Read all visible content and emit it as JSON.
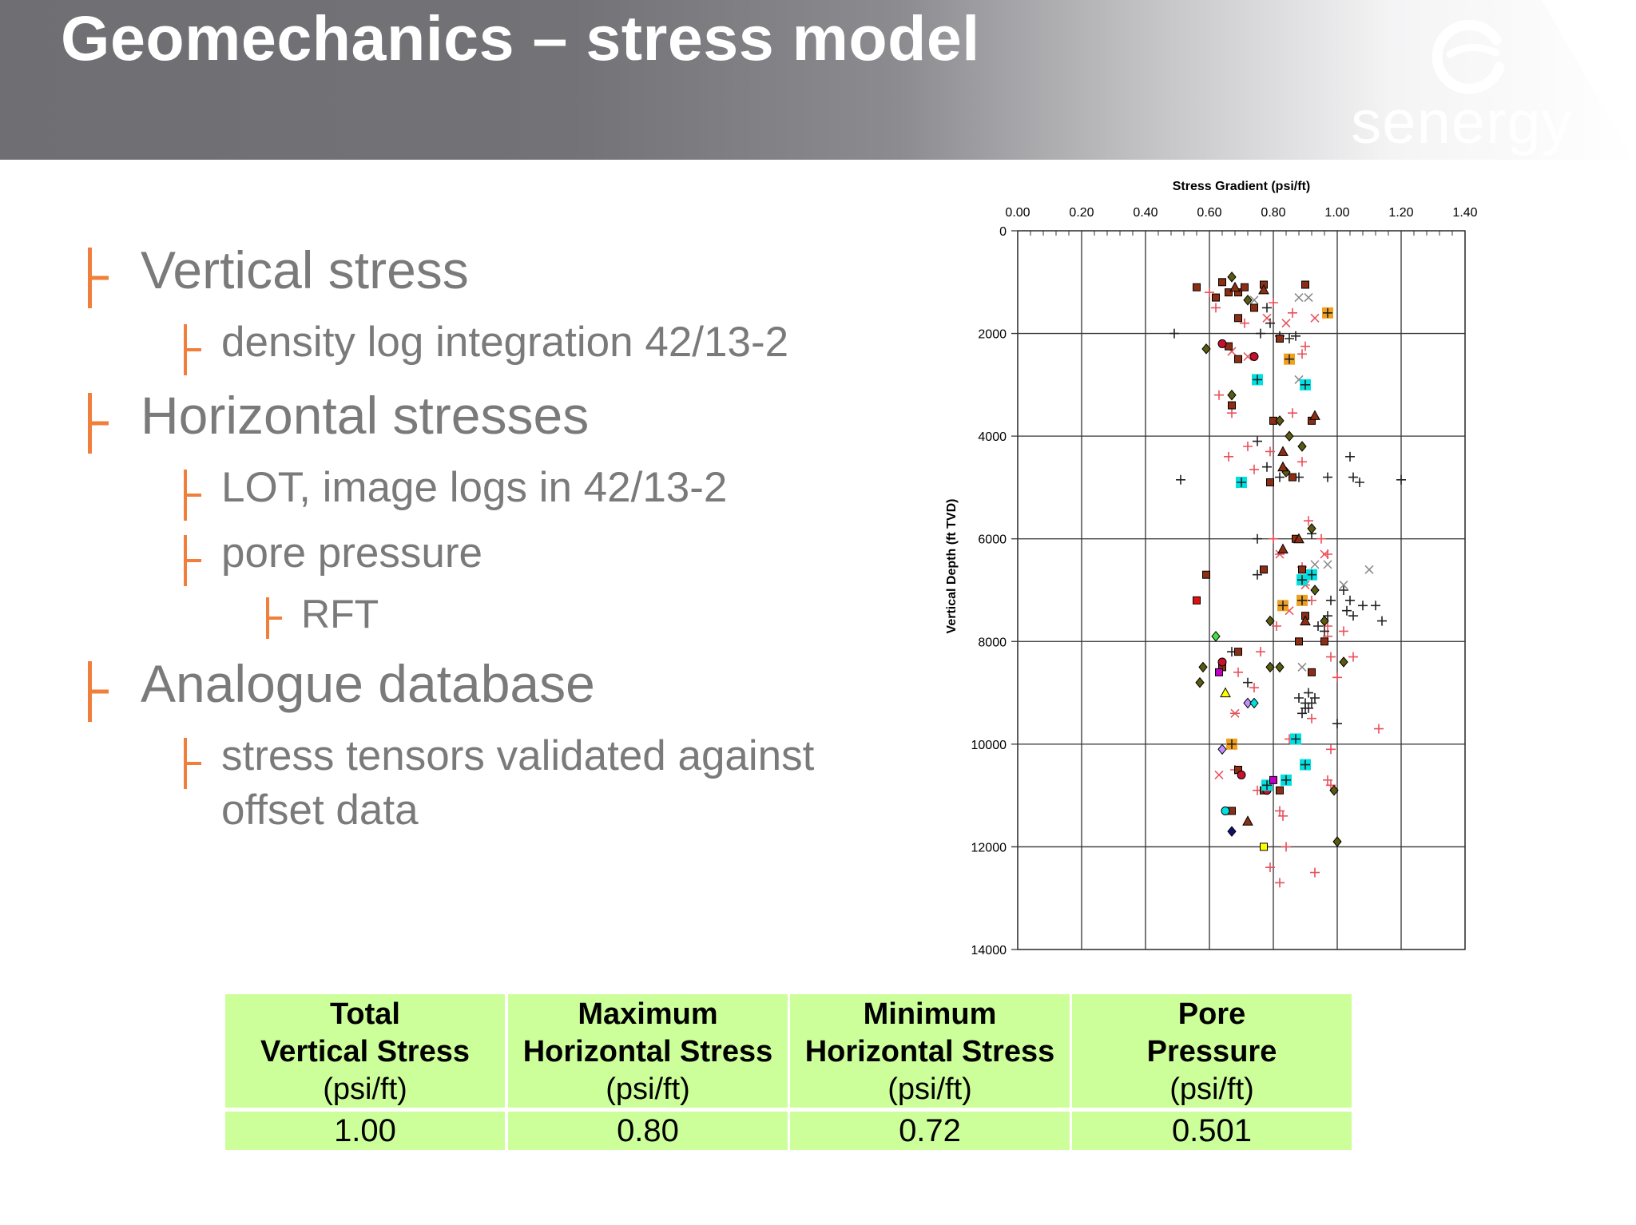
{
  "slide": {
    "title": "Geomechanics – stress model",
    "logo": {
      "word": "senergy",
      "icon": "senergy-swoosh-icon"
    },
    "colors": {
      "header_gray": "#737377",
      "bullet_marker": "#f07f3c",
      "bullet_text": "#7a7a7a",
      "table_fill": "#ccff99"
    }
  },
  "bullets": [
    {
      "level": 1,
      "text": "Vertical stress"
    },
    {
      "level": 2,
      "text": "density log integration 42/13-2"
    },
    {
      "level": 1,
      "text": "Horizontal stresses"
    },
    {
      "level": 2,
      "text": "LOT, image logs in 42/13-2"
    },
    {
      "level": 2,
      "text": "pore pressure"
    },
    {
      "level": 3,
      "text": "RFT"
    },
    {
      "level": 1,
      "text": "Analogue database"
    },
    {
      "level": 2,
      "text": "stress tensors validated against"
    },
    {
      "level": 2,
      "text": "offset data"
    }
  ],
  "chart_data": {
    "type": "scatter",
    "title": "Stress Gradient (psi/ft)",
    "xlabel": "Stress Gradient (psi/ft)",
    "ylabel": "Vertical Depth (ft TVD)",
    "xlim": [
      0,
      1.4
    ],
    "ylim": [
      0,
      14000
    ],
    "y_inverted": true,
    "x_axis_position": "top",
    "grid": true,
    "x_ticks": [
      "0.00",
      "0.20",
      "0.40",
      "0.60",
      "0.80",
      "1.00",
      "1.20",
      "1.40"
    ],
    "y_ticks": [
      "0",
      "2000",
      "4000",
      "6000",
      "8000",
      "10000",
      "12000",
      "14000"
    ],
    "series": [
      {
        "marker": "plus",
        "color": "#e8505a",
        "points": [
          [
            0.6,
            1200
          ],
          [
            0.62,
            1500
          ],
          [
            0.71,
            1800
          ],
          [
            0.8,
            1400
          ],
          [
            0.86,
            1600
          ],
          [
            0.9,
            2250
          ],
          [
            0.89,
            2400
          ],
          [
            0.63,
            3200
          ],
          [
            0.67,
            3550
          ],
          [
            0.86,
            3550
          ],
          [
            0.66,
            4400
          ],
          [
            0.72,
            4200
          ],
          [
            0.79,
            4300
          ],
          [
            0.89,
            4500
          ],
          [
            0.74,
            4650
          ],
          [
            0.91,
            5650
          ],
          [
            0.8,
            6000
          ],
          [
            0.95,
            6000
          ],
          [
            0.97,
            6300
          ],
          [
            0.89,
            6550
          ],
          [
            0.97,
            7700
          ],
          [
            1.02,
            7800
          ],
          [
            1.05,
            8300
          ],
          [
            0.98,
            8300
          ],
          [
            0.97,
            7900
          ],
          [
            1.0,
            8700
          ],
          [
            0.98,
            10100
          ],
          [
            0.97,
            10700
          ],
          [
            0.98,
            10800
          ],
          [
            0.75,
            10900
          ],
          [
            0.82,
            11300
          ],
          [
            0.83,
            11400
          ],
          [
            0.84,
            12000
          ],
          [
            0.79,
            12400
          ],
          [
            0.82,
            12700
          ],
          [
            0.93,
            12500
          ],
          [
            0.68,
            10500
          ],
          [
            0.74,
            8900
          ],
          [
            0.92,
            9500
          ],
          [
            0.85,
            9900
          ],
          [
            1.13,
            9700
          ],
          [
            0.81,
            7700
          ],
          [
            0.76,
            8200
          ],
          [
            0.92,
            7200
          ],
          [
            0.69,
            8600
          ]
        ]
      },
      {
        "marker": "plus",
        "color": "#222222",
        "points": [
          [
            0.49,
            2000
          ],
          [
            0.78,
            1500
          ],
          [
            0.79,
            1800
          ],
          [
            0.76,
            2000
          ],
          [
            0.82,
            2050
          ],
          [
            0.85,
            2100
          ],
          [
            0.87,
            2050
          ],
          [
            0.75,
            4100
          ],
          [
            0.78,
            4600
          ],
          [
            0.82,
            4800
          ],
          [
            0.88,
            4800
          ],
          [
            0.97,
            4800
          ],
          [
            1.04,
            4400
          ],
          [
            1.05,
            4800
          ],
          [
            1.07,
            4900
          ],
          [
            0.51,
            4850
          ],
          [
            1.2,
            4850
          ],
          [
            0.92,
            5900
          ],
          [
            0.75,
            6000
          ],
          [
            0.75,
            6700
          ],
          [
            0.9,
            7200
          ],
          [
            0.98,
            7200
          ],
          [
            1.02,
            7000
          ],
          [
            1.04,
            7200
          ],
          [
            1.03,
            7400
          ],
          [
            1.05,
            7500
          ],
          [
            1.08,
            7300
          ],
          [
            1.12,
            7300
          ],
          [
            1.14,
            7600
          ],
          [
            0.94,
            7700
          ],
          [
            0.97,
            7500
          ],
          [
            0.96,
            7800
          ],
          [
            0.88,
            9100
          ],
          [
            0.9,
            9300
          ],
          [
            0.93,
            9100
          ],
          [
            0.91,
            9300
          ],
          [
            0.9,
            9200
          ],
          [
            0.91,
            9000
          ],
          [
            0.92,
            9200
          ],
          [
            0.89,
            9400
          ],
          [
            1.0,
            9600
          ],
          [
            0.67,
            8200
          ],
          [
            0.72,
            8800
          ]
        ]
      },
      {
        "marker": "cross",
        "color": "#e8505a",
        "points": [
          [
            0.78,
            1700
          ],
          [
            0.72,
            2450
          ],
          [
            0.67,
            2350
          ],
          [
            0.84,
            1800
          ],
          [
            0.93,
            1700
          ],
          [
            0.63,
            10600
          ],
          [
            0.85,
            7400
          ],
          [
            0.96,
            6300
          ]
        ]
      },
      {
        "marker": "cross",
        "color": "#888888",
        "points": [
          [
            0.88,
            1300
          ],
          [
            0.91,
            1300
          ],
          [
            0.74,
            1350
          ],
          [
            0.88,
            2900
          ],
          [
            0.93,
            6500
          ],
          [
            0.97,
            6500
          ],
          [
            1.02,
            6900
          ],
          [
            1.1,
            6600
          ],
          [
            0.89,
            8500
          ]
        ]
      },
      {
        "marker": "asterisk",
        "color": "#e8505a",
        "points": [
          [
            0.82,
            6300
          ],
          [
            0.68,
            9400
          ],
          [
            0.9,
            6900
          ]
        ]
      },
      {
        "marker": "square",
        "color": "#8b2e14",
        "points": [
          [
            0.56,
            1100
          ],
          [
            0.64,
            1000
          ],
          [
            0.66,
            1200
          ],
          [
            0.69,
            1200
          ],
          [
            0.71,
            1100
          ],
          [
            0.77,
            1050
          ],
          [
            0.9,
            1050
          ],
          [
            0.62,
            1300
          ],
          [
            0.74,
            1500
          ],
          [
            0.69,
            1700
          ],
          [
            0.82,
            2100
          ],
          [
            0.66,
            2250
          ],
          [
            0.69,
            2500
          ],
          [
            0.67,
            3400
          ],
          [
            0.8,
            3700
          ],
          [
            0.92,
            3700
          ],
          [
            0.79,
            4900
          ],
          [
            0.86,
            4800
          ],
          [
            0.59,
            6700
          ],
          [
            0.87,
            6000
          ],
          [
            0.89,
            6600
          ],
          [
            0.77,
            6600
          ],
          [
            0.9,
            7500
          ],
          [
            0.88,
            8000
          ],
          [
            0.96,
            8000
          ],
          [
            0.64,
            8500
          ],
          [
            0.69,
            8200
          ],
          [
            0.92,
            8600
          ],
          [
            0.69,
            10500
          ],
          [
            0.77,
            10900
          ],
          [
            0.67,
            11300
          ],
          [
            0.82,
            10900
          ]
        ]
      },
      {
        "marker": "diamond",
        "color": "#5a5a10",
        "points": [
          [
            0.67,
            900
          ],
          [
            0.59,
            2300
          ],
          [
            0.72,
            1350
          ],
          [
            0.67,
            3200
          ],
          [
            0.82,
            3700
          ],
          [
            0.85,
            4000
          ],
          [
            0.84,
            4700
          ],
          [
            0.92,
            5800
          ],
          [
            0.89,
            4200
          ],
          [
            0.79,
            7600
          ],
          [
            0.93,
            7000
          ],
          [
            0.96,
            7600
          ],
          [
            1.02,
            8400
          ],
          [
            0.58,
            8500
          ],
          [
            0.57,
            8800
          ],
          [
            0.79,
            8500
          ],
          [
            0.82,
            8500
          ],
          [
            0.99,
            10900
          ],
          [
            1.0,
            11900
          ]
        ]
      },
      {
        "marker": "triangle",
        "color": "#8b2e14",
        "points": [
          [
            0.68,
            1100
          ],
          [
            0.77,
            1150
          ],
          [
            0.93,
            3600
          ],
          [
            0.83,
            4300
          ],
          [
            0.83,
            6200
          ],
          [
            0.88,
            6000
          ],
          [
            0.9,
            7600
          ],
          [
            0.72,
            11500
          ],
          [
            0.83,
            4600
          ]
        ]
      },
      {
        "marker": "circle",
        "color": "#c8102e",
        "points": [
          [
            0.64,
            2200
          ],
          [
            0.74,
            2450
          ],
          [
            0.64,
            8400
          ],
          [
            0.78,
            10900
          ],
          [
            0.7,
            10600
          ]
        ]
      },
      {
        "marker": "square-plus",
        "color": "#00e0e0",
        "points": [
          [
            0.75,
            2900
          ],
          [
            0.9,
            3000
          ],
          [
            0.7,
            4900
          ],
          [
            0.92,
            6700
          ],
          [
            0.89,
            6800
          ],
          [
            0.87,
            9900
          ],
          [
            0.9,
            10400
          ],
          [
            0.84,
            10700
          ],
          [
            0.78,
            10800
          ]
        ]
      },
      {
        "marker": "square-plus",
        "color": "#f0a020",
        "points": [
          [
            0.97,
            1600
          ],
          [
            0.85,
            2500
          ],
          [
            0.83,
            7300
          ],
          [
            0.89,
            7200
          ],
          [
            0.67,
            10000
          ]
        ]
      },
      {
        "marker": "square",
        "color": "#e01010",
        "points": [
          [
            0.56,
            7200
          ]
        ]
      },
      {
        "marker": "square",
        "color": "#ffff00",
        "points": [
          [
            0.77,
            12000
          ]
        ]
      },
      {
        "marker": "square",
        "color": "#c000c0",
        "points": [
          [
            0.63,
            8600
          ],
          [
            0.8,
            10700
          ]
        ]
      },
      {
        "marker": "diamond",
        "color": "#40e040",
        "points": [
          [
            0.62,
            7900
          ]
        ]
      },
      {
        "marker": "diamond",
        "color": "#c090ff",
        "points": [
          [
            0.72,
            9200
          ],
          [
            0.64,
            10100
          ]
        ]
      },
      {
        "marker": "diamond",
        "color": "#00e0e0",
        "points": [
          [
            0.74,
            9200
          ]
        ]
      },
      {
        "marker": "diamond",
        "color": "#101070",
        "points": [
          [
            0.67,
            11700
          ]
        ]
      },
      {
        "marker": "circle",
        "color": "#00e0e0",
        "points": [
          [
            0.65,
            11300
          ]
        ]
      },
      {
        "marker": "triangle",
        "color": "#ffff00",
        "points": [
          [
            0.65,
            9000
          ]
        ]
      }
    ]
  },
  "stress_table": {
    "columns": [
      {
        "header_lines": [
          "Total",
          "Vertical Stress"
        ],
        "unit": "(psi/ft)",
        "value": "1.00"
      },
      {
        "header_lines": [
          "Maximum",
          "Horizontal Stress"
        ],
        "unit": "(psi/ft)",
        "value": "0.80"
      },
      {
        "header_lines": [
          "Minimum",
          "Horizontal Stress"
        ],
        "unit": "(psi/ft)",
        "value": "0.72"
      },
      {
        "header_lines": [
          "Pore",
          "Pressure"
        ],
        "unit": "(psi/ft)",
        "value": "0.501"
      }
    ]
  }
}
